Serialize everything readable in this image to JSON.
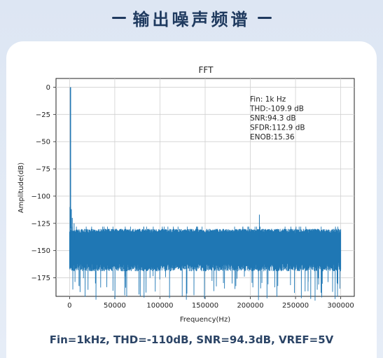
{
  "header": {
    "title": "输出噪声频谱"
  },
  "caption": "Fin=1kHz, THD=-110dB, SNR=94.3dB, VREF=5V",
  "chart_data": {
    "type": "line",
    "title": "FFT",
    "xlabel": "Frequency(Hz)",
    "ylabel": "Amplitude(dB)",
    "xlim": [
      -15000,
      315000
    ],
    "ylim": [
      -192,
      8
    ],
    "xticks": [
      0,
      50000,
      100000,
      150000,
      200000,
      250000,
      300000
    ],
    "yticks": [
      0,
      -25,
      -50,
      -75,
      -100,
      -125,
      -150,
      -175
    ],
    "grid": true,
    "color": "#1f77b4",
    "fundamental": {
      "x": 1000,
      "y": 0
    },
    "spurs": [
      {
        "x": 500,
        "y": -110
      },
      {
        "x": 2000,
        "y": -112
      },
      {
        "x": 3000,
        "y": -120
      },
      {
        "x": 5000,
        "y": -125
      },
      {
        "x": 210000,
        "y": -117
      }
    ],
    "noise_floor": {
      "x_range": [
        0,
        300000
      ],
      "upper": -130,
      "lower": -165,
      "min_dips": -188
    },
    "annotations": [
      "Fin: 1k Hz",
      "THD:-109.9 dB",
      "SNR:94.3 dB",
      "SFDR:112.9 dB",
      "ENOB:15.36"
    ]
  }
}
